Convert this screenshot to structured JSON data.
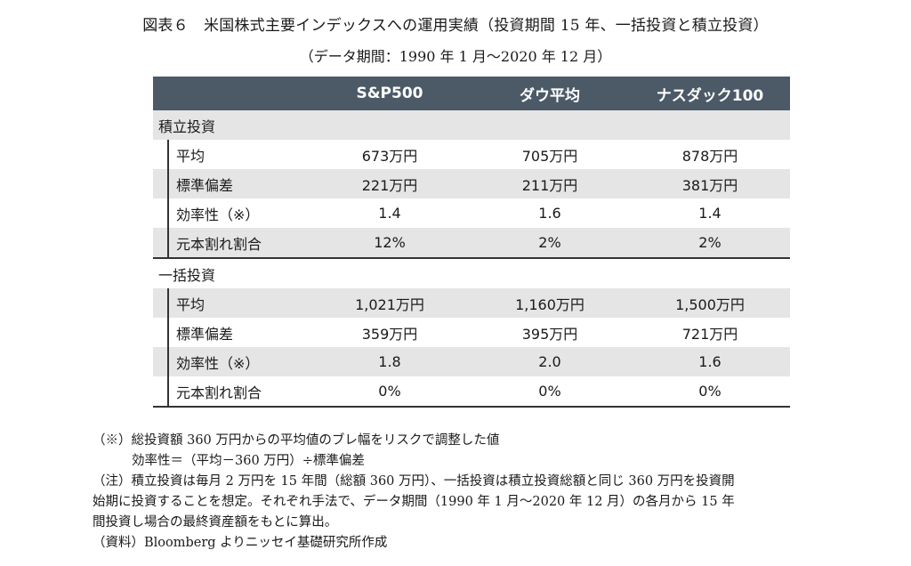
{
  "title": "図表６　米国株式主要インデックスへの運用実績（投資期間 15 年、一括投資と積立投資）",
  "subtitle": "（データ期間：1990 年 1 月～2020 年 12 月）",
  "table": {
    "columns": [
      "S&P500",
      "ダウ平均",
      "ナスダック100"
    ],
    "sections": [
      {
        "name": "積立投資",
        "rows": [
          {
            "label": "平均",
            "values": [
              "673万円",
              "705万円",
              "878万円"
            ]
          },
          {
            "label": "標準偏差",
            "values": [
              "221万円",
              "211万円",
              "381万円"
            ]
          },
          {
            "label": "効率性（※）",
            "values": [
              "1.4",
              "1.6",
              "1.4"
            ]
          },
          {
            "label": "元本割れ割合",
            "values": [
              "12%",
              "2%",
              "2%"
            ]
          }
        ]
      },
      {
        "name": "一括投資",
        "rows": [
          {
            "label": "平均",
            "values": [
              "1,021万円",
              "1,160万円",
              "1,500万円"
            ]
          },
          {
            "label": "標準偏差",
            "values": [
              "359万円",
              "395万円",
              "721万円"
            ]
          },
          {
            "label": "効率性（※）",
            "values": [
              "1.8",
              "2.0",
              "1.6"
            ]
          },
          {
            "label": "元本割れ割合",
            "values": [
              "0%",
              "0%",
              "0%"
            ]
          }
        ]
      }
    ]
  },
  "notes": {
    "note1": "（※）総投資額 360 万円からの平均値のブレ幅をリスクで調整した値",
    "note1_formula": "効率性＝（平均－360 万円）÷標準偏差",
    "note2_line1": "（注）積立投資は毎月 2 万円を 15 年間（総額 360 万円）、一括投資は積立投資総額と同じ 360 万円を投資開",
    "note2_line2": "始期に投資することを想定。それぞれ手法で、データ期間（1990 年 1 月～2020 年 12 月）の各月から 15 年",
    "note2_line3": "間投資し場合の最終資産額をもとに算出。",
    "source": "（資料）Bloomberg よりニッセイ基礎研究所作成"
  }
}
